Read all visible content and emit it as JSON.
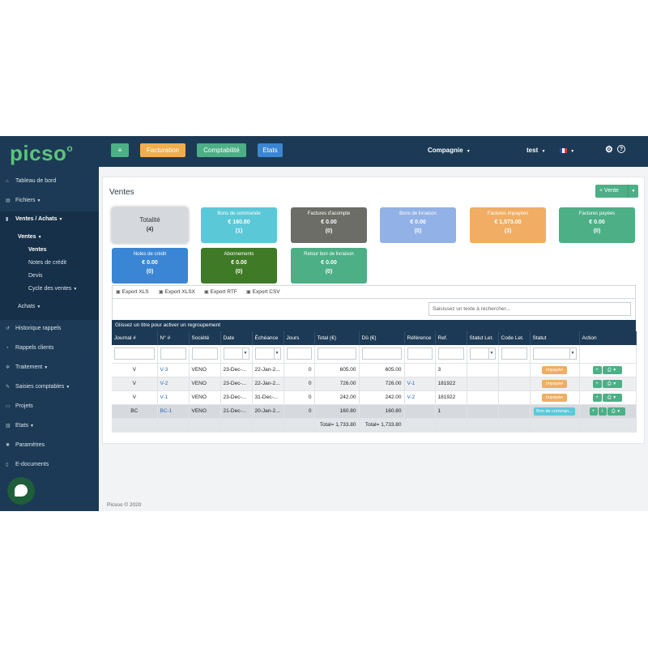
{
  "app": {
    "logo": "picso",
    "logo_sup": "o",
    "footer": "Picsoo © 2020"
  },
  "topbar": {
    "menu_icon": "hamburger-icon",
    "buttons": [
      {
        "label": "Facturation",
        "color": "#f0ad4e"
      },
      {
        "label": "Comptabilité",
        "color": "#4caf86"
      },
      {
        "label": "Etats",
        "color": "#3a86d4"
      }
    ],
    "company": "Compagnie",
    "user": "test",
    "lang_icon": "french-flag-icon",
    "settings_icon": "gear-icon",
    "help_icon": "question-circle-icon"
  },
  "sidebar": {
    "tableau": "Tableau de bord",
    "fichiers": "Fichiers",
    "ventes_achats": "Ventes / Achats",
    "ventes_group": "Ventes",
    "sub_items": [
      "Ventes",
      "Notes de crédit",
      "Devis",
      "Cycle des ventes"
    ],
    "achats": "Achats",
    "items": [
      "Historique rappels",
      "Rappels clients",
      "Traitement",
      "Saisies comptables",
      "Projets",
      "Etats",
      "Paramètres",
      "E-documents"
    ]
  },
  "page": {
    "title": "Ventes",
    "new_button": "+ Vente",
    "cards": [
      {
        "title": "Totalité",
        "value": "",
        "count": "(4)",
        "color": "#d5d9dd"
      },
      {
        "title": "Bons de commande",
        "value": "€ 160.80",
        "count": "(1)",
        "color": "#5bc8d8"
      },
      {
        "title": "Factures d'acompte",
        "value": "€ 0.00",
        "count": "(0)",
        "color": "#6b6d66"
      },
      {
        "title": "Bons de livraison",
        "value": "€ 0.00",
        "count": "(0)",
        "color": "#92b1e6"
      },
      {
        "title": "Factures impayées",
        "value": "€ 1,573.00",
        "count": "(3)",
        "color": "#f0ad63"
      },
      {
        "title": "Factures payées",
        "value": "€ 0.00",
        "count": "(0)",
        "color": "#4caf86"
      },
      {
        "title": "Notes de crédit",
        "value": "€ 0.00",
        "count": "(0)",
        "color": "#3a86d4"
      },
      {
        "title": "Abonnements",
        "value": "€ 0.00",
        "count": "(0)",
        "color": "#3f7a26"
      },
      {
        "title": "Retour bon de livraison",
        "value": "€ 0.00",
        "count": "(0)",
        "color": "#4caf86"
      }
    ]
  },
  "grid": {
    "exports": [
      "Export XLS",
      "Export XLSX",
      "Export RTF",
      "Export CSV"
    ],
    "search_placeholder": "Saisissez un texte à rechercher...",
    "group_hint": "Glissez un titre pour activer un regroupement",
    "columns": [
      "Journal #",
      "N° #",
      "Société",
      "Date",
      "Échéance",
      "Jours",
      "Total (€)",
      "Dû  (€)",
      "Référence",
      "Ref.",
      "Statut Let.",
      "Code Let.",
      "Statut",
      "Action"
    ],
    "rows": [
      {
        "journal": "V",
        "num": "V-3",
        "societe": "VENO",
        "date": "23-Dec-...",
        "echeance": "22-Jan-2...",
        "jours": "0",
        "total": "605.00",
        "du": "605.00",
        "reference": "",
        "ref": "3",
        "statut": "Impayée",
        "statut_color": "#f0ad63"
      },
      {
        "journal": "V",
        "num": "V-2",
        "societe": "VENO",
        "date": "23-Dec-...",
        "echeance": "22-Jan-2...",
        "jours": "0",
        "total": "726.00",
        "du": "726.00",
        "reference": "V-1",
        "ref": "181922",
        "statut": "Impayée",
        "statut_color": "#f0ad63"
      },
      {
        "journal": "V",
        "num": "V-1",
        "societe": "VENO",
        "date": "23-Dec-...",
        "echeance": "31-Dec-...",
        "jours": "0",
        "total": "242.00",
        "du": "242.00",
        "reference": "V-2",
        "ref": "181922",
        "statut": "Impayée",
        "statut_color": "#f0ad63"
      },
      {
        "journal": "BC",
        "num": "BC-1",
        "societe": "VENO",
        "date": "21-Dec-...",
        "echeance": "20-Jan-2...",
        "jours": "0",
        "total": "160.80",
        "du": "160.80",
        "reference": "",
        "ref": "1",
        "statut": "Bon de comman...",
        "statut_color": "#5bc8d8"
      }
    ],
    "totals": {
      "total": "Total= 1,733.80",
      "du": "Total= 1,733.80"
    }
  }
}
